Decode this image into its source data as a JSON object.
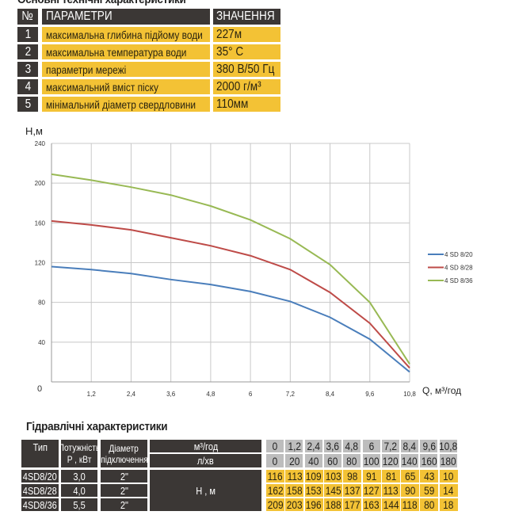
{
  "specs": {
    "title": "Основні технічні характеристики",
    "header": {
      "num": "№",
      "param": "ПАРАМЕТРИ",
      "value": "ЗНАЧЕННЯ"
    },
    "rows": [
      {
        "num": "1",
        "param": "максимальна глибина підйому води",
        "value": "227м"
      },
      {
        "num": "2",
        "param": "максимальна температура води",
        "value": "35° C"
      },
      {
        "num": "3",
        "param": "параметри мережі",
        "value": "380 В/50 Гц"
      },
      {
        "num": "4",
        "param": "максимальний вміст піску",
        "value": "2000 г/м³"
      },
      {
        "num": "5",
        "param": "мінімальний діаметр свердловини",
        "value": "110мм"
      }
    ]
  },
  "chart_data": {
    "type": "line",
    "ylabel": "H,м",
    "xlabel": "Q,  м³/год",
    "x": [
      0,
      1.2,
      2.4,
      3.6,
      4.8,
      6,
      7.2,
      8.4,
      9.6,
      10.8
    ],
    "x_tick_labels": [
      "0",
      "1,2",
      "2,4",
      "3,6",
      "4,8",
      "6",
      "7,2",
      "8,4",
      "9,6",
      "10,8"
    ],
    "y_ticks": [
      0,
      40,
      80,
      120,
      160,
      200,
      240
    ],
    "xlim": [
      0,
      10.8
    ],
    "ylim": [
      0,
      240
    ],
    "grid": true,
    "legend": "right",
    "series": [
      {
        "name": "4 SD 8/20",
        "color": "#4a7ebb",
        "values": [
          116,
          113,
          109,
          103,
          98,
          91,
          81,
          65,
          43,
          10
        ]
      },
      {
        "name": "4 SD 8/28",
        "color": "#be4b48",
        "values": [
          162,
          158,
          153,
          145,
          137,
          127,
          113,
          90,
          59,
          14
        ]
      },
      {
        "name": "4 SD 8/36",
        "color": "#98b954",
        "values": [
          209,
          203,
          196,
          188,
          177,
          163,
          144,
          118,
          80,
          18
        ]
      }
    ]
  },
  "hydraulic": {
    "title": "Гідравлічні характеристики",
    "headers": {
      "type": "Тип",
      "power1": "Потужність",
      "power2": "P , кВт",
      "diam1": "Діаметр",
      "diam2": "підключення",
      "unit_m3": "м³/год",
      "unit_l": "л/хв",
      "head": "H , м"
    },
    "flow_m3": [
      "0",
      "1,2",
      "2,4",
      "3,6",
      "4,8",
      "6",
      "7,2",
      "8,4",
      "9,6",
      "10,8"
    ],
    "flow_l": [
      "0",
      "20",
      "40",
      "60",
      "80",
      "100",
      "120",
      "140",
      "160",
      "180"
    ],
    "rows": [
      {
        "type": "4SD8/20",
        "power": "3,0",
        "diam": "2\"",
        "values": [
          "116",
          "113",
          "109",
          "103",
          "98",
          "91",
          "81",
          "65",
          "43",
          "10"
        ]
      },
      {
        "type": "4SD8/28",
        "power": "4,0",
        "diam": "2\"",
        "values": [
          "162",
          "158",
          "153",
          "145",
          "137",
          "127",
          "113",
          "90",
          "59",
          "14"
        ]
      },
      {
        "type": "4SD8/36",
        "power": "5,5",
        "diam": "2\"",
        "values": [
          "209",
          "203",
          "196",
          "188",
          "177",
          "163",
          "144",
          "118",
          "80",
          "18"
        ]
      }
    ]
  }
}
